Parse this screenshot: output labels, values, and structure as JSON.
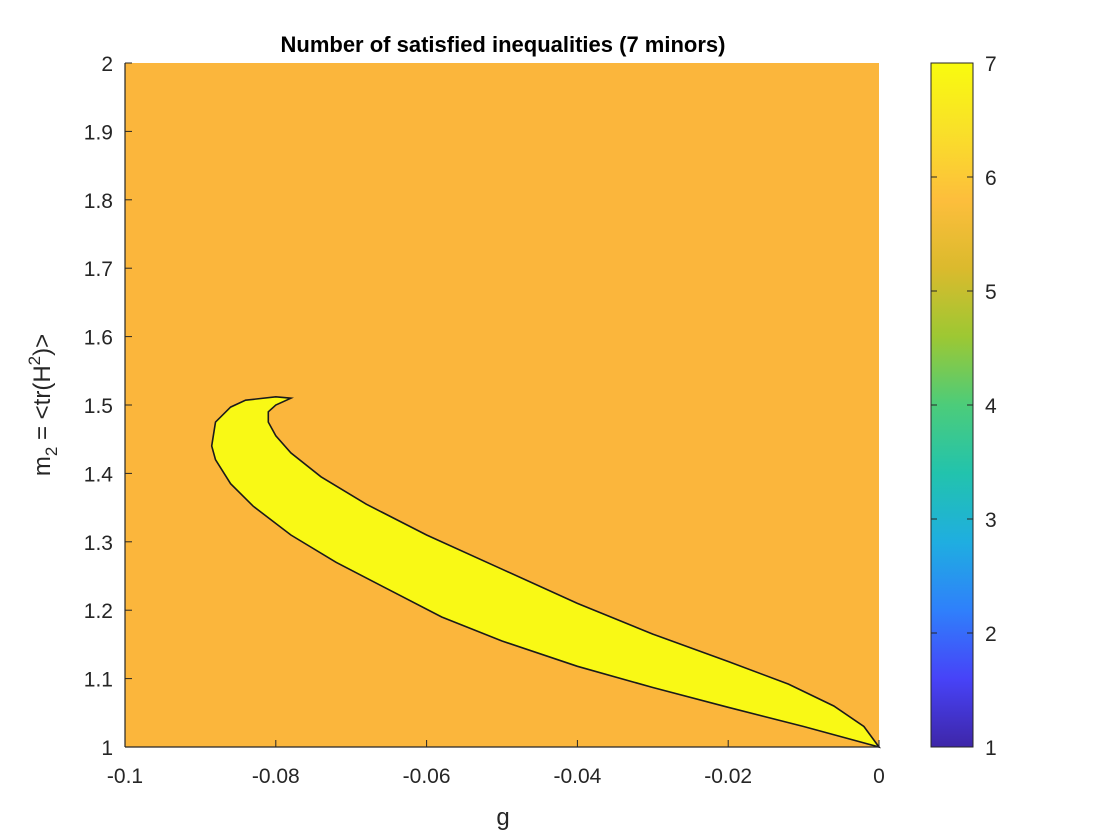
{
  "chart_data": {
    "type": "heatmap",
    "title": "Number of satisfied inequalities (7 minors)",
    "xlabel": "g",
    "ylabel": {
      "m": "m",
      "sub": "2",
      "eq": " = <tr(H",
      "sup": "2",
      "close": ")>"
    },
    "xlim": [
      -0.1,
      0
    ],
    "ylim": [
      1,
      2
    ],
    "xticks": [
      -0.1,
      -0.08,
      -0.06,
      -0.04,
      -0.02,
      0
    ],
    "xtick_labels": [
      "-0.1",
      "-0.08",
      "-0.06",
      "-0.04",
      "-0.02",
      "0"
    ],
    "yticks": [
      1,
      1.1,
      1.2,
      1.3,
      1.4,
      1.5,
      1.6,
      1.7,
      1.8,
      1.9,
      2
    ],
    "ytick_labels": [
      "1",
      "1.1",
      "1.2",
      "1.3",
      "1.4",
      "1.5",
      "1.6",
      "1.7",
      "1.8",
      "1.9",
      "2"
    ],
    "background_value": 6,
    "region": {
      "value": 7,
      "description": "Region where all 7 inequalities hold",
      "boundary": [
        [
          0.0,
          1.0
        ],
        [
          -0.002,
          1.03
        ],
        [
          -0.006,
          1.06
        ],
        [
          -0.012,
          1.092
        ],
        [
          -0.02,
          1.125
        ],
        [
          -0.03,
          1.165
        ],
        [
          -0.04,
          1.21
        ],
        [
          -0.05,
          1.26
        ],
        [
          -0.06,
          1.31
        ],
        [
          -0.068,
          1.355
        ],
        [
          -0.074,
          1.395
        ],
        [
          -0.078,
          1.43
        ],
        [
          -0.08,
          1.455
        ],
        [
          -0.081,
          1.475
        ],
        [
          -0.081,
          1.49
        ],
        [
          -0.08,
          1.5
        ],
        [
          -0.078,
          1.51
        ],
        [
          -0.08,
          1.512
        ],
        [
          -0.084,
          1.507
        ],
        [
          -0.086,
          1.497
        ],
        [
          -0.088,
          1.475
        ],
        [
          -0.0885,
          1.44
        ],
        [
          -0.088,
          1.42
        ],
        [
          -0.086,
          1.385
        ],
        [
          -0.083,
          1.352
        ],
        [
          -0.078,
          1.31
        ],
        [
          -0.072,
          1.27
        ],
        [
          -0.065,
          1.23
        ],
        [
          -0.058,
          1.19
        ],
        [
          -0.05,
          1.155
        ],
        [
          -0.04,
          1.118
        ],
        [
          -0.03,
          1.087
        ],
        [
          -0.02,
          1.058
        ],
        [
          -0.01,
          1.03
        ],
        [
          0.0,
          1.0
        ]
      ]
    },
    "colorbar": {
      "min": 1,
      "max": 7,
      "ticks": [
        1,
        2,
        3,
        4,
        5,
        6,
        7
      ],
      "tick_labels": [
        "1",
        "2",
        "3",
        "4",
        "5",
        "6",
        "7"
      ],
      "colormap": "parula",
      "stops": [
        "#3e26a8",
        "#4743f8",
        "#2f80fb",
        "#1faee0",
        "#22c3ad",
        "#4ccc7a",
        "#9dc833",
        "#dbba2d",
        "#fdbe3c",
        "#f9e029",
        "#f9fb0e"
      ]
    },
    "colors": {
      "background_fill": "#fbb63c",
      "region_fill": "#f9f915",
      "contour": "#1a1a1a",
      "axis": "#262626"
    }
  }
}
